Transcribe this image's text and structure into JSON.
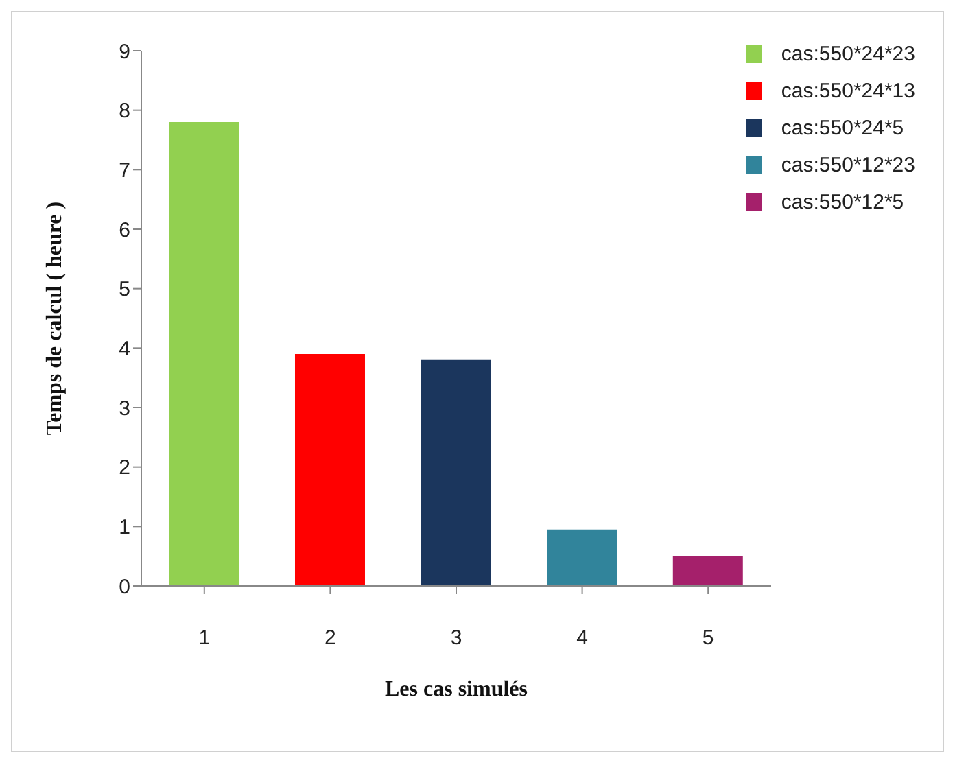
{
  "chart_data": {
    "type": "bar",
    "xlabel": "Les cas simulés",
    "ylabel": "Temps de calcul ( heure )",
    "categories": [
      "1",
      "2",
      "3",
      "4",
      "5"
    ],
    "stacked": true,
    "series": [
      {
        "name": "cas:550*24*23",
        "color": "#92d050",
        "values": [
          7.8,
          null,
          null,
          null,
          null
        ]
      },
      {
        "name": "cas:550*24*13",
        "color": "#ff0000",
        "values": [
          null,
          3.9,
          null,
          null,
          null
        ]
      },
      {
        "name": "cas:550*24*5",
        "color": "#1b365d",
        "values": [
          null,
          null,
          3.8,
          null,
          null
        ]
      },
      {
        "name": "cas:550*12*23",
        "color": "#31849b",
        "values": [
          null,
          null,
          null,
          0.95,
          null
        ]
      },
      {
        "name": "cas:550*12*5",
        "color": "#a5206b",
        "values": [
          null,
          null,
          null,
          null,
          0.5
        ]
      }
    ],
    "ylim": [
      0,
      9
    ],
    "yticks": [
      0,
      1,
      2,
      3,
      4,
      5,
      6,
      7,
      8,
      9
    ],
    "legend": "top right"
  }
}
